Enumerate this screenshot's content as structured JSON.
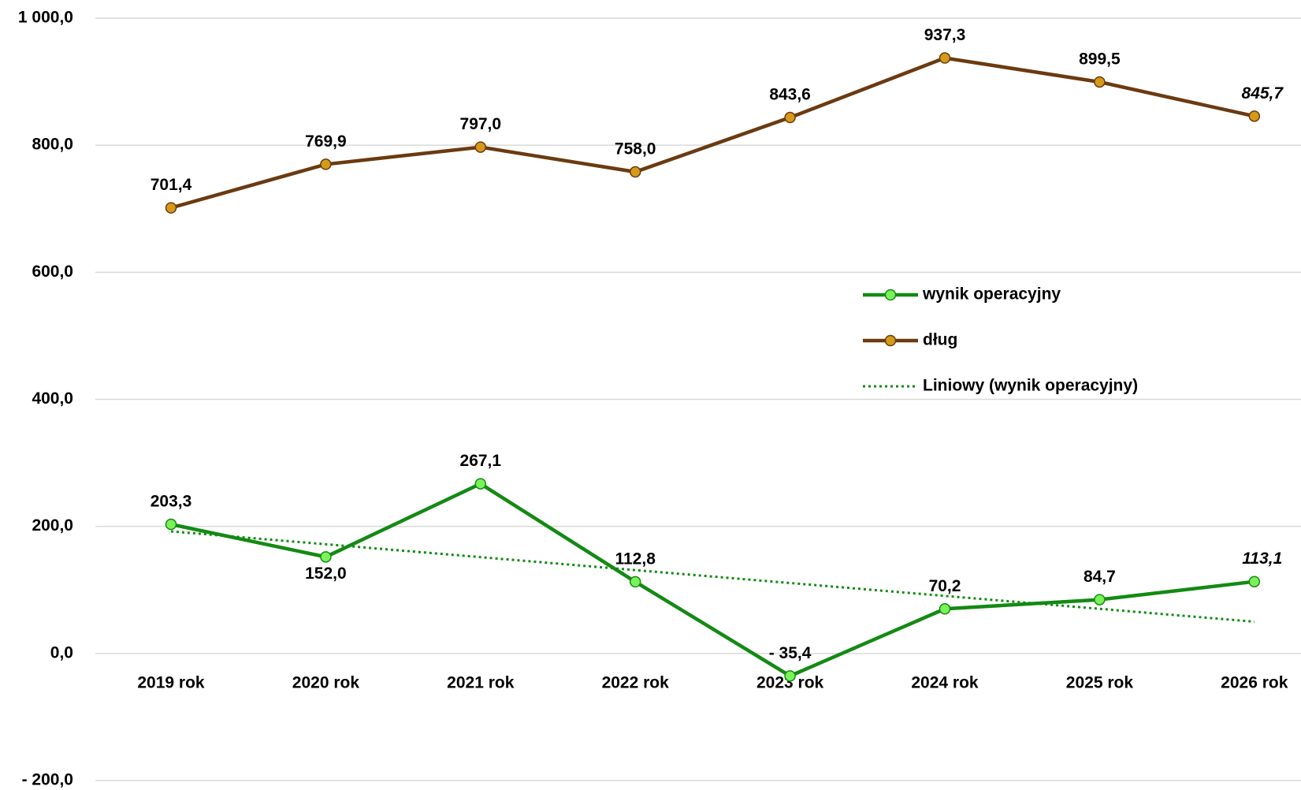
{
  "chart_data": {
    "type": "line",
    "categories": [
      "2019 rok",
      "2020 rok",
      "2021 rok",
      "2022 rok",
      "2023 rok",
      "2024 rok",
      "2025 rok",
      "2026 rok"
    ],
    "series": [
      {
        "name": "wynik operacyjny",
        "color": "#138a13",
        "marker_color": "#7cf25a",
        "values": [
          203.3,
          152.0,
          267.1,
          112.8,
          -35.4,
          70.2,
          84.7,
          113.1
        ],
        "value_labels": [
          "203,3",
          "152,0",
          "267,1",
          "112,8",
          "- 35,4",
          "70,2",
          "84,7",
          "113,1"
        ]
      },
      {
        "name": "dług",
        "color": "#6b3a10",
        "marker_color": "#d49a1a",
        "values": [
          701.4,
          769.9,
          797.0,
          758.0,
          843.6,
          937.3,
          899.5,
          845.7
        ],
        "value_labels": [
          "701,4",
          "769,9",
          "797,0",
          "758,0",
          "843,6",
          "937,3",
          "899,5",
          "845,7"
        ]
      },
      {
        "name": "Liniowy (wynik operacyjny)",
        "color": "#138a13",
        "dashed": true,
        "values": [
          192.2,
          171.9,
          151.6,
          131.2,
          110.9,
          90.6,
          70.3,
          50.0
        ]
      }
    ],
    "ylim": [
      -200,
      1000
    ],
    "yticks": [
      {
        "value": -200,
        "label": "- 200,0"
      },
      {
        "value": 0,
        "label": "0,0"
      },
      {
        "value": 200,
        "label": "200,0"
      },
      {
        "value": 400,
        "label": "400,0"
      },
      {
        "value": 600,
        "label": "600,0"
      },
      {
        "value": 800,
        "label": "800,0"
      },
      {
        "value": 1000,
        "label": "1 000,0"
      }
    ],
    "grid": true,
    "legend": "right"
  }
}
